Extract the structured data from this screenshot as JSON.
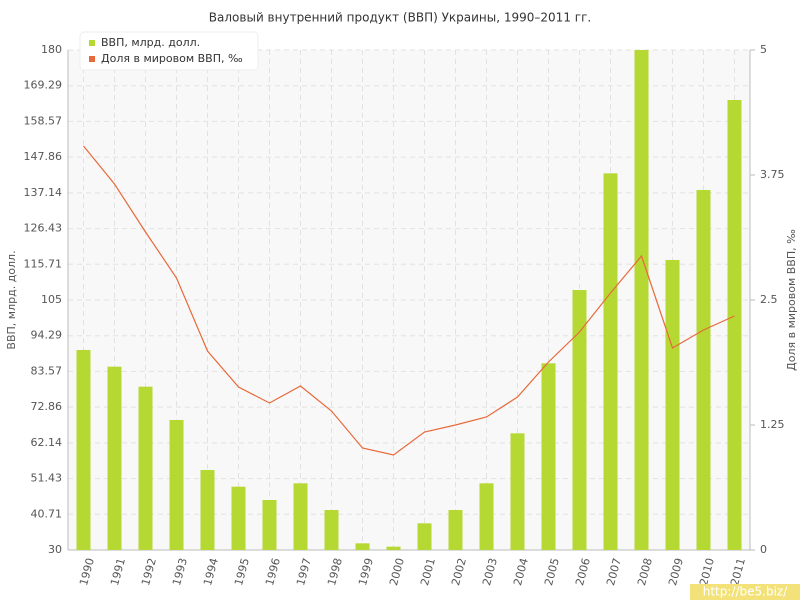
{
  "chart_data": {
    "type": "bar-line",
    "title": "Валовый внутренний продукт (ВВП) Украины, 1990–2011 гг.",
    "y_label": "ВВП, млрд. долл.",
    "y2_label": "Доля в мировом ВВП, ‰",
    "categories": [
      "1990",
      "1991",
      "1992",
      "1993",
      "1994",
      "1995",
      "1996",
      "1997",
      "1998",
      "1999",
      "2000",
      "2001",
      "2002",
      "2003",
      "2004",
      "2005",
      "2006",
      "2007",
      "2008",
      "2009",
      "2010",
      "2011"
    ],
    "series": [
      {
        "name": "ВВП, млрд. долл.",
        "color": "#b5d932",
        "kind": "bar",
        "values": [
          90,
          85,
          79,
          69,
          54,
          49,
          45,
          50,
          42,
          32,
          31,
          38,
          42,
          50,
          65,
          86,
          108,
          143,
          180,
          117,
          138,
          165
        ]
      },
      {
        "name": "Доля в мировом ВВП, ‰",
        "color": "#e8693a",
        "kind": "line",
        "axis": "y2",
        "values": [
          4.04,
          3.66,
          3.18,
          2.72,
          1.99,
          1.63,
          1.47,
          1.64,
          1.39,
          1.02,
          0.95,
          1.18,
          1.25,
          1.33,
          1.53,
          1.88,
          2.18,
          2.57,
          2.94,
          2.02,
          2.2,
          2.34
        ]
      }
    ],
    "ylim": [
      30,
      180
    ],
    "yticks": [
      30,
      40.71,
      51.43,
      62.14,
      72.86,
      83.57,
      94.29,
      105,
      115.71,
      126.43,
      137.14,
      147.86,
      158.57,
      169.29,
      180
    ],
    "y2lim": [
      0,
      5
    ],
    "y2ticks": [
      0,
      1.25,
      2.5,
      3.75,
      5
    ],
    "grid": true,
    "legend": "top-left",
    "watermark": "http://be5.biz/"
  }
}
